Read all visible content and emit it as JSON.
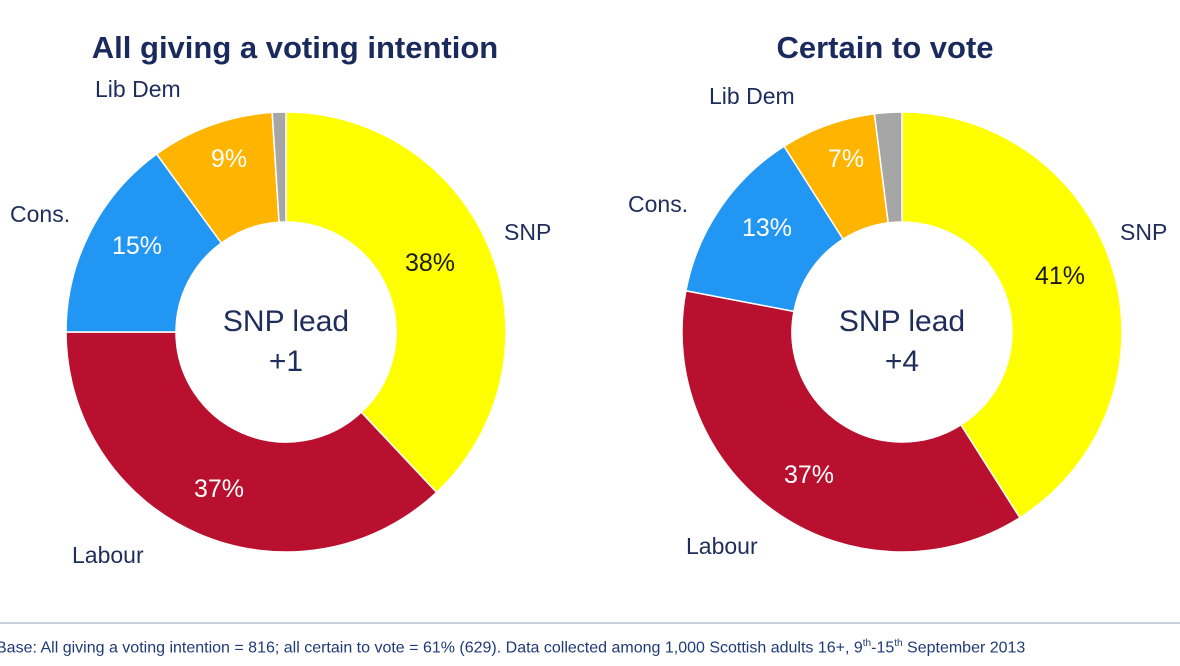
{
  "chart_data": [
    {
      "type": "pie",
      "title": "All giving a voting intention",
      "center_label": [
        "SNP lead",
        "+1"
      ],
      "slices": [
        {
          "name": "SNP",
          "value": 38,
          "label": "38%",
          "color": "#ffff00"
        },
        {
          "name": "Labour",
          "value": 37,
          "label": "37%",
          "color": "#b8102e"
        },
        {
          "name": "Cons.",
          "value": 15,
          "label": "15%",
          "color": "#2196f3"
        },
        {
          "name": "Lib Dem",
          "value": 9,
          "label": "9%",
          "color": "#ffb400"
        },
        {
          "name": "",
          "value": 1,
          "label": "",
          "color": "#a6a6a6"
        }
      ]
    },
    {
      "type": "pie",
      "title": "Certain to vote",
      "center_label": [
        "SNP lead",
        "+4"
      ],
      "slices": [
        {
          "name": "SNP",
          "value": 41,
          "label": "41%",
          "color": "#ffff00"
        },
        {
          "name": "Labour",
          "value": 37,
          "label": "37%",
          "color": "#b8102e"
        },
        {
          "name": "Cons.",
          "value": 13,
          "label": "13%",
          "color": "#2196f3"
        },
        {
          "name": "Lib Dem",
          "value": 7,
          "label": "7%",
          "color": "#ffb400"
        },
        {
          "name": "",
          "value": 2,
          "label": "",
          "color": "#a6a6a6"
        }
      ]
    }
  ],
  "footnote": {
    "text_a": "Base: All giving a voting intention = 816; all certain to vote = 61% (629). Data collected among 1,000 Scottish adults 16+, 9",
    "sup_a": "th",
    "text_b": "-15",
    "sup_b": "th",
    "text_c": " September 2013"
  }
}
